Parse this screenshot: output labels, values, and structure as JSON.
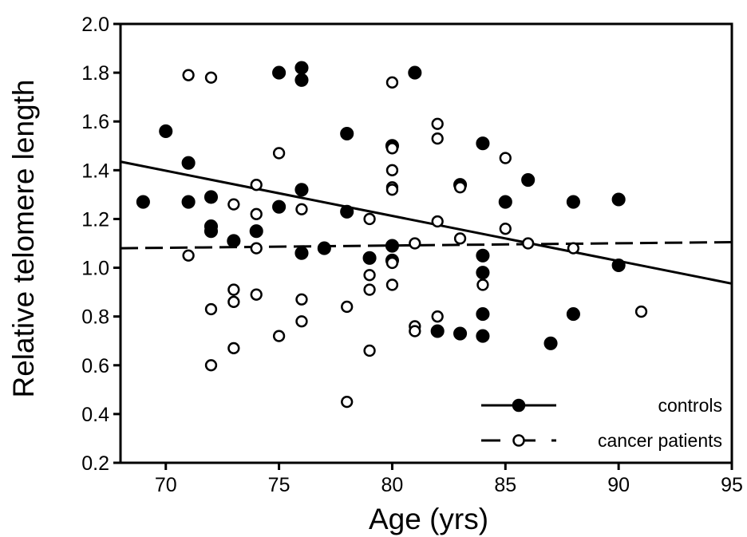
{
  "chart_data": {
    "type": "scatter",
    "title": "",
    "xlabel": "Age (yrs)",
    "ylabel": "Relative telomere length",
    "xlim": [
      68,
      95
    ],
    "ylim": [
      0.2,
      2.0
    ],
    "x_ticks": [
      70,
      75,
      80,
      85,
      90,
      95
    ],
    "y_ticks": [
      0.2,
      0.4,
      0.6,
      0.8,
      1.0,
      1.2,
      1.4,
      1.6,
      1.8,
      2.0
    ],
    "x_tick_labels": [
      "70",
      "75",
      "80",
      "85",
      "90",
      "95"
    ],
    "y_tick_labels": [
      "0.2",
      "0.4",
      "0.6",
      "0.8",
      "1.0",
      "1.2",
      "1.4",
      "1.6",
      "1.8",
      "2.0"
    ],
    "grid": false,
    "legend_position": "bottom-right",
    "series": [
      {
        "name": "controls",
        "marker": "filled-circle",
        "line_style": "solid",
        "color": "#000000",
        "fit_line": [
          [
            68,
            1.435
          ],
          [
            95,
            0.935
          ]
        ],
        "points": [
          [
            69,
            1.27
          ],
          [
            70,
            1.56
          ],
          [
            71,
            1.43
          ],
          [
            71,
            1.27
          ],
          [
            72,
            1.29
          ],
          [
            72,
            1.17
          ],
          [
            72,
            1.15
          ],
          [
            73,
            1.11
          ],
          [
            74,
            1.15
          ],
          [
            75,
            1.8
          ],
          [
            75,
            1.25
          ],
          [
            76,
            1.82
          ],
          [
            76,
            1.77
          ],
          [
            76,
            1.32
          ],
          [
            76,
            1.06
          ],
          [
            77,
            1.08
          ],
          [
            78,
            1.55
          ],
          [
            78,
            1.23
          ],
          [
            79,
            1.04
          ],
          [
            80,
            1.5
          ],
          [
            80,
            1.09
          ],
          [
            80,
            1.03
          ],
          [
            81,
            1.8
          ],
          [
            82,
            0.74
          ],
          [
            83,
            1.34
          ],
          [
            83,
            0.73
          ],
          [
            84,
            1.51
          ],
          [
            84,
            1.05
          ],
          [
            84,
            0.98
          ],
          [
            84,
            0.81
          ],
          [
            84,
            0.72
          ],
          [
            85,
            1.27
          ],
          [
            86,
            1.36
          ],
          [
            87,
            0.69
          ],
          [
            88,
            1.27
          ],
          [
            88,
            0.81
          ],
          [
            90,
            1.28
          ],
          [
            90,
            1.01
          ]
        ]
      },
      {
        "name": "cancer patients",
        "marker": "open-circle",
        "line_style": "dashed",
        "color": "#000000",
        "fit_line": [
          [
            68,
            1.08
          ],
          [
            95,
            1.105
          ]
        ],
        "points": [
          [
            71,
            1.79
          ],
          [
            71,
            1.05
          ],
          [
            72,
            1.78
          ],
          [
            72,
            0.83
          ],
          [
            72,
            0.6
          ],
          [
            73,
            1.26
          ],
          [
            73,
            0.91
          ],
          [
            73,
            0.86
          ],
          [
            73,
            0.67
          ],
          [
            74,
            1.34
          ],
          [
            74,
            1.22
          ],
          [
            74,
            1.08
          ],
          [
            74,
            0.89
          ],
          [
            75,
            1.47
          ],
          [
            75,
            0.72
          ],
          [
            76,
            1.24
          ],
          [
            76,
            0.87
          ],
          [
            76,
            0.78
          ],
          [
            78,
            0.84
          ],
          [
            78,
            0.45
          ],
          [
            79,
            1.2
          ],
          [
            79,
            0.97
          ],
          [
            79,
            0.91
          ],
          [
            79,
            0.66
          ],
          [
            80,
            1.76
          ],
          [
            80,
            1.49
          ],
          [
            80,
            1.4
          ],
          [
            80,
            1.33
          ],
          [
            80,
            1.32
          ],
          [
            80,
            1.02
          ],
          [
            80,
            0.93
          ],
          [
            81,
            1.1
          ],
          [
            81,
            0.76
          ],
          [
            81,
            0.74
          ],
          [
            82,
            1.59
          ],
          [
            82,
            1.53
          ],
          [
            82,
            1.19
          ],
          [
            82,
            0.8
          ],
          [
            83,
            1.33
          ],
          [
            83,
            1.12
          ],
          [
            84,
            0.93
          ],
          [
            85,
            1.45
          ],
          [
            85,
            1.16
          ],
          [
            86,
            1.1
          ],
          [
            88,
            1.08
          ],
          [
            91,
            0.82
          ]
        ]
      }
    ]
  }
}
